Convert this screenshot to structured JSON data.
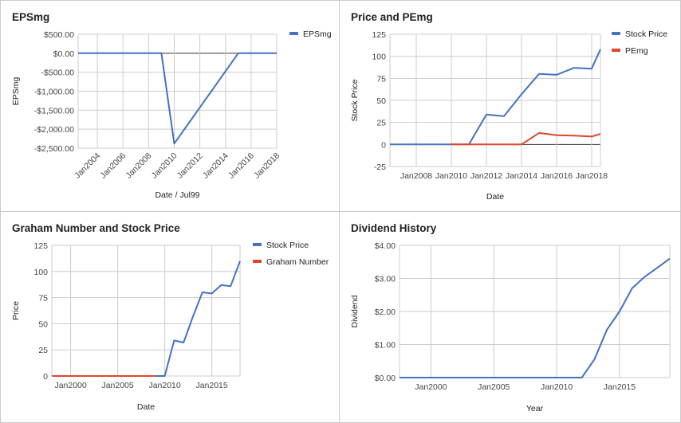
{
  "colors": {
    "blue": "#4472c4",
    "red": "#e0452a"
  },
  "chart_data": [
    {
      "type": "line",
      "title": "EPSmg",
      "xlabel": "Date / Jul99",
      "ylabel": "EPSmg",
      "xlim": [
        2002.5,
        2018.0
      ],
      "ylim": [
        -2500,
        500
      ],
      "y_ticks": [
        500,
        0,
        -500,
        -1000,
        -1500,
        -2000,
        -2500
      ],
      "y_tick_labels": [
        "$500.00",
        "$0.00",
        "-$500.00",
        "-$1,000.00",
        "-$1,500.00",
        "-$2,000.00",
        "-$2,500.00"
      ],
      "x_ticks": [
        2004,
        2006,
        2008,
        2010,
        2012,
        2014,
        2016,
        2018
      ],
      "x_tick_labels": [
        "Jan2004",
        "Jan2006",
        "Jan2008",
        "Jan2010",
        "Jan2012",
        "Jan2014",
        "Jan2016",
        "Jan2018"
      ],
      "x_tick_rotation": -45,
      "zero_line": true,
      "legend_position": "right",
      "series": [
        {
          "name": "EPSmg",
          "color": "#4472c4",
          "x": [
            2002.5,
            2009.0,
            2010.0,
            2015.0,
            2018.0
          ],
          "y": [
            0,
            0,
            -2380,
            0,
            0
          ]
        }
      ]
    },
    {
      "type": "line",
      "title": "Price and PEmg",
      "xlabel": "Date",
      "ylabel": "Stock Price",
      "xlim": [
        2006.5,
        2018.5
      ],
      "ylim": [
        -25,
        125
      ],
      "y_ticks": [
        125,
        100,
        75,
        50,
        25,
        0,
        -25
      ],
      "y_tick_labels": [
        "125",
        "100",
        "75",
        "50",
        "25",
        "0",
        "-25"
      ],
      "x_ticks": [
        2008,
        2010,
        2012,
        2014,
        2016,
        2018
      ],
      "x_tick_labels": [
        "Jan2008",
        "Jan2010",
        "Jan2012",
        "Jan2014",
        "Jan2016",
        "Jan2018"
      ],
      "zero_line": true,
      "legend_position": "right",
      "series": [
        {
          "name": "Stock Price",
          "color": "#4472c4",
          "x": [
            2006.5,
            2011.0,
            2012.0,
            2013.0,
            2014.0,
            2015.0,
            2016.0,
            2017.0,
            2018.0,
            2018.5
          ],
          "y": [
            0,
            0,
            34,
            32,
            57,
            80,
            79,
            87,
            86,
            108
          ]
        },
        {
          "name": "PEmg",
          "color": "#e0452a",
          "x": [
            2010.0,
            2014.0,
            2015.0,
            2016.0,
            2017.0,
            2018.0,
            2018.5
          ],
          "y": [
            0,
            0,
            13,
            10.5,
            10,
            9,
            12
          ]
        }
      ]
    },
    {
      "type": "line",
      "title": "Graham Number and Stock Price",
      "xlabel": "Date",
      "ylabel": "Price",
      "xlim": [
        1998.0,
        2018.0
      ],
      "ylim": [
        0,
        125
      ],
      "y_ticks": [
        125,
        100,
        75,
        50,
        25,
        0
      ],
      "y_tick_labels": [
        "125",
        "100",
        "75",
        "50",
        "25",
        "0"
      ],
      "x_ticks": [
        2000,
        2005,
        2010,
        2015
      ],
      "x_tick_labels": [
        "Jan2000",
        "Jan2005",
        "Jan2010",
        "Jan2015"
      ],
      "legend_position": "right",
      "series": [
        {
          "name": "Stock Price",
          "color": "#4472c4",
          "x": [
            1998.0,
            2010.0,
            2011.0,
            2012.0,
            2013.0,
            2014.0,
            2015.0,
            2016.0,
            2017.0,
            2018.0
          ],
          "y": [
            0,
            0,
            34,
            32,
            57,
            80,
            79,
            87,
            86,
            110
          ]
        },
        {
          "name": "Graham Number",
          "color": "#e0452a",
          "x": [
            1998.0,
            2009.0
          ],
          "y": [
            0,
            0
          ]
        }
      ]
    },
    {
      "type": "line",
      "title": "Dividend History",
      "xlabel": "Year",
      "ylabel": "Dividend",
      "xlim": [
        1997.5,
        2019.0
      ],
      "ylim": [
        0,
        4
      ],
      "y_ticks": [
        4,
        3,
        2,
        1,
        0
      ],
      "y_tick_labels": [
        "$4.00",
        "$3.00",
        "$2.00",
        "$1.00",
        "$0.00"
      ],
      "x_ticks": [
        2000,
        2005,
        2010,
        2015
      ],
      "x_tick_labels": [
        "Jan2000",
        "Jan2005",
        "Jan2010",
        "Jan2015"
      ],
      "legend_position": "none",
      "series": [
        {
          "color": "#4472c4",
          "x": [
            1997.5,
            2012.0,
            2013.0,
            2014.0,
            2015.0,
            2016.0,
            2017.0,
            2018.0,
            2019.0
          ],
          "y": [
            0,
            0,
            0.55,
            1.45,
            2.0,
            2.7,
            3.05,
            3.32,
            3.6
          ]
        }
      ]
    }
  ]
}
